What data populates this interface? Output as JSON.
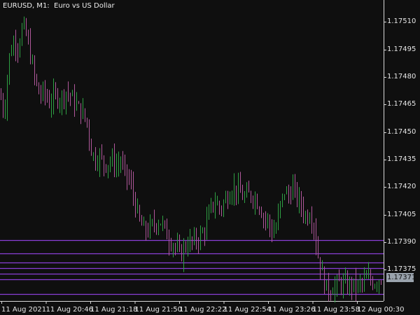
{
  "chart_title": "EURUSD, M1:  Euro vs US Dollar",
  "current_price": "1.17371",
  "colors": {
    "background": "#0f0f0f",
    "axis": "#d8d8d8",
    "bull": "#2ea043",
    "bear": "#b0589b",
    "level_line": "#8a3fd6",
    "price_box": "#9aa3ad"
  },
  "chart_data": {
    "type": "candlestick",
    "symbol": "EURUSD",
    "timeframe": "M1",
    "description": "Euro vs US Dollar",
    "y_ticks": [
      "1.17510",
      "1.17495",
      "1.17480",
      "1.17465",
      "1.17450",
      "1.17435",
      "1.17420",
      "1.17405",
      "1.17390",
      "1.17375"
    ],
    "x_ticks": [
      "11 Aug 2021",
      "11 Aug 20:46",
      "11 Aug 21:18",
      "11 Aug 21:50",
      "11 Aug 22:22",
      "11 Aug 22:54",
      "11 Aug 23:26",
      "11 Aug 23:58",
      "12 Aug 00:30"
    ],
    "ylim": [
      1.17358,
      1.17522
    ],
    "level_lines": [
      1.17391,
      1.17384,
      1.17379,
      1.17376,
      1.17373,
      1.1737,
      1.17362
    ],
    "close_path": [
      [
        0,
        1.1747
      ],
      [
        6,
        1.1746
      ],
      [
        12,
        1.1749
      ],
      [
        20,
        1.175
      ],
      [
        26,
        1.17497
      ],
      [
        32,
        1.17508
      ],
      [
        38,
        1.17502
      ],
      [
        44,
        1.1749
      ],
      [
        50,
        1.17478
      ],
      [
        56,
        1.1747
      ],
      [
        62,
        1.17472
      ],
      [
        70,
        1.17466
      ],
      [
        78,
        1.1747
      ],
      [
        86,
        1.17468
      ],
      [
        94,
        1.17472
      ],
      [
        100,
        1.1747
      ],
      [
        106,
        1.17466
      ],
      [
        112,
        1.17463
      ],
      [
        118,
        1.1746
      ],
      [
        124,
        1.17455
      ],
      [
        130,
        1.1744
      ],
      [
        136,
        1.17435
      ],
      [
        142,
        1.17437
      ],
      [
        150,
        1.17432
      ],
      [
        158,
        1.17435
      ],
      [
        166,
        1.17432
      ],
      [
        172,
        1.17434
      ],
      [
        178,
        1.17428
      ],
      [
        186,
        1.17422
      ],
      [
        192,
        1.17412
      ],
      [
        198,
        1.17402
      ],
      [
        206,
        1.17396
      ],
      [
        212,
        1.17397
      ],
      [
        220,
        1.174
      ],
      [
        228,
        1.17402
      ],
      [
        234,
        1.17398
      ],
      [
        240,
        1.17392
      ],
      [
        246,
        1.1739
      ],
      [
        252,
        1.17386
      ],
      [
        258,
        1.17383
      ],
      [
        264,
        1.17388
      ],
      [
        270,
        1.1739
      ],
      [
        276,
        1.1739
      ],
      [
        282,
        1.17392
      ],
      [
        290,
        1.17395
      ],
      [
        296,
        1.17402
      ],
      [
        302,
        1.1741
      ],
      [
        308,
        1.17412
      ],
      [
        314,
        1.17408
      ],
      [
        320,
        1.17412
      ],
      [
        326,
        1.17416
      ],
      [
        332,
        1.1742
      ],
      [
        340,
        1.17418
      ],
      [
        348,
        1.17414
      ],
      [
        356,
        1.17416
      ],
      [
        362,
        1.17415
      ],
      [
        370,
        1.1741
      ],
      [
        376,
        1.17404
      ],
      [
        382,
        1.17402
      ],
      [
        388,
        1.17395
      ],
      [
        394,
        1.17398
      ],
      [
        400,
        1.1741
      ],
      [
        406,
        1.17418
      ],
      [
        412,
        1.17415
      ],
      [
        418,
        1.1742
      ],
      [
        424,
        1.17414
      ],
      [
        430,
        1.1741
      ],
      [
        436,
        1.17404
      ],
      [
        442,
        1.17406
      ],
      [
        448,
        1.174
      ],
      [
        452,
        1.17386
      ],
      [
        458,
        1.17376
      ],
      [
        464,
        1.17366
      ],
      [
        470,
        1.17364
      ],
      [
        478,
        1.17366
      ],
      [
        486,
        1.17368
      ],
      [
        494,
        1.17366
      ],
      [
        502,
        1.17367
      ],
      [
        510,
        1.17366
      ],
      [
        518,
        1.17368
      ],
      [
        526,
        1.1737
      ],
      [
        534,
        1.17368
      ],
      [
        540,
        1.1737
      ],
      [
        548,
        1.17371
      ]
    ]
  }
}
